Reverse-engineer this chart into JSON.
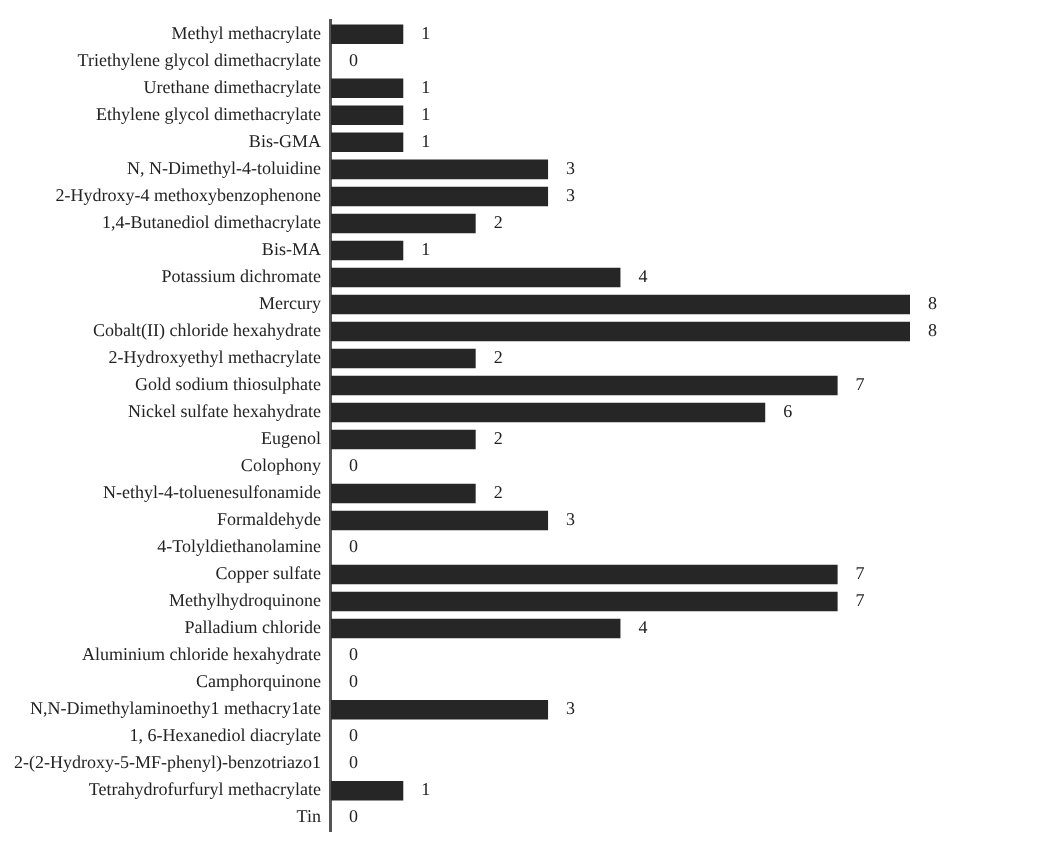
{
  "chart_data": {
    "type": "bar",
    "orientation": "horizontal",
    "data_labels": true,
    "color": "#262626",
    "categories": [
      "Methyl methacrylate",
      "Triethylene glycol dimethacrylate",
      "Urethane dimethacrylate",
      "Ethylene glycol dimethacrylate",
      "Bis-GMA",
      "N, N-Dimethyl-4-toluidine",
      "2-Hydroxy-4 methoxybenzophenone",
      "1,4-Butanediol dimethacrylate",
      "Bis-MA",
      "Potassium dichromate",
      "Mercury",
      "Cobalt(II) chloride hexahydrate",
      "2-Hydroxyethyl methacrylate",
      "Gold sodium thiosulphate",
      "Nickel sulfate hexahydrate",
      "Eugenol",
      "Colophony",
      "N-ethyl-4-toluenesulfonamide",
      "Formaldehyde",
      "4-Tolyldiethanolamine",
      "Copper sulfate",
      "Methylhydroquinone",
      "Palladium chloride",
      "Aluminium chloride hexahydrate",
      "Camphorquinone",
      "N,N-Dimethylaminoethy1 methacry1ate",
      "1, 6-Hexanediol diacrylate",
      "2-(2-Hydroxy-5-MF-phenyl)-benzotriazo1",
      "Tetrahydrofurfuryl methacrylate",
      "Tin"
    ],
    "values": [
      1,
      0,
      1,
      1,
      1,
      3,
      3,
      2,
      1,
      4,
      8,
      8,
      2,
      7,
      6,
      2,
      0,
      2,
      3,
      0,
      7,
      7,
      4,
      0,
      0,
      3,
      0,
      0,
      1,
      0
    ]
  }
}
